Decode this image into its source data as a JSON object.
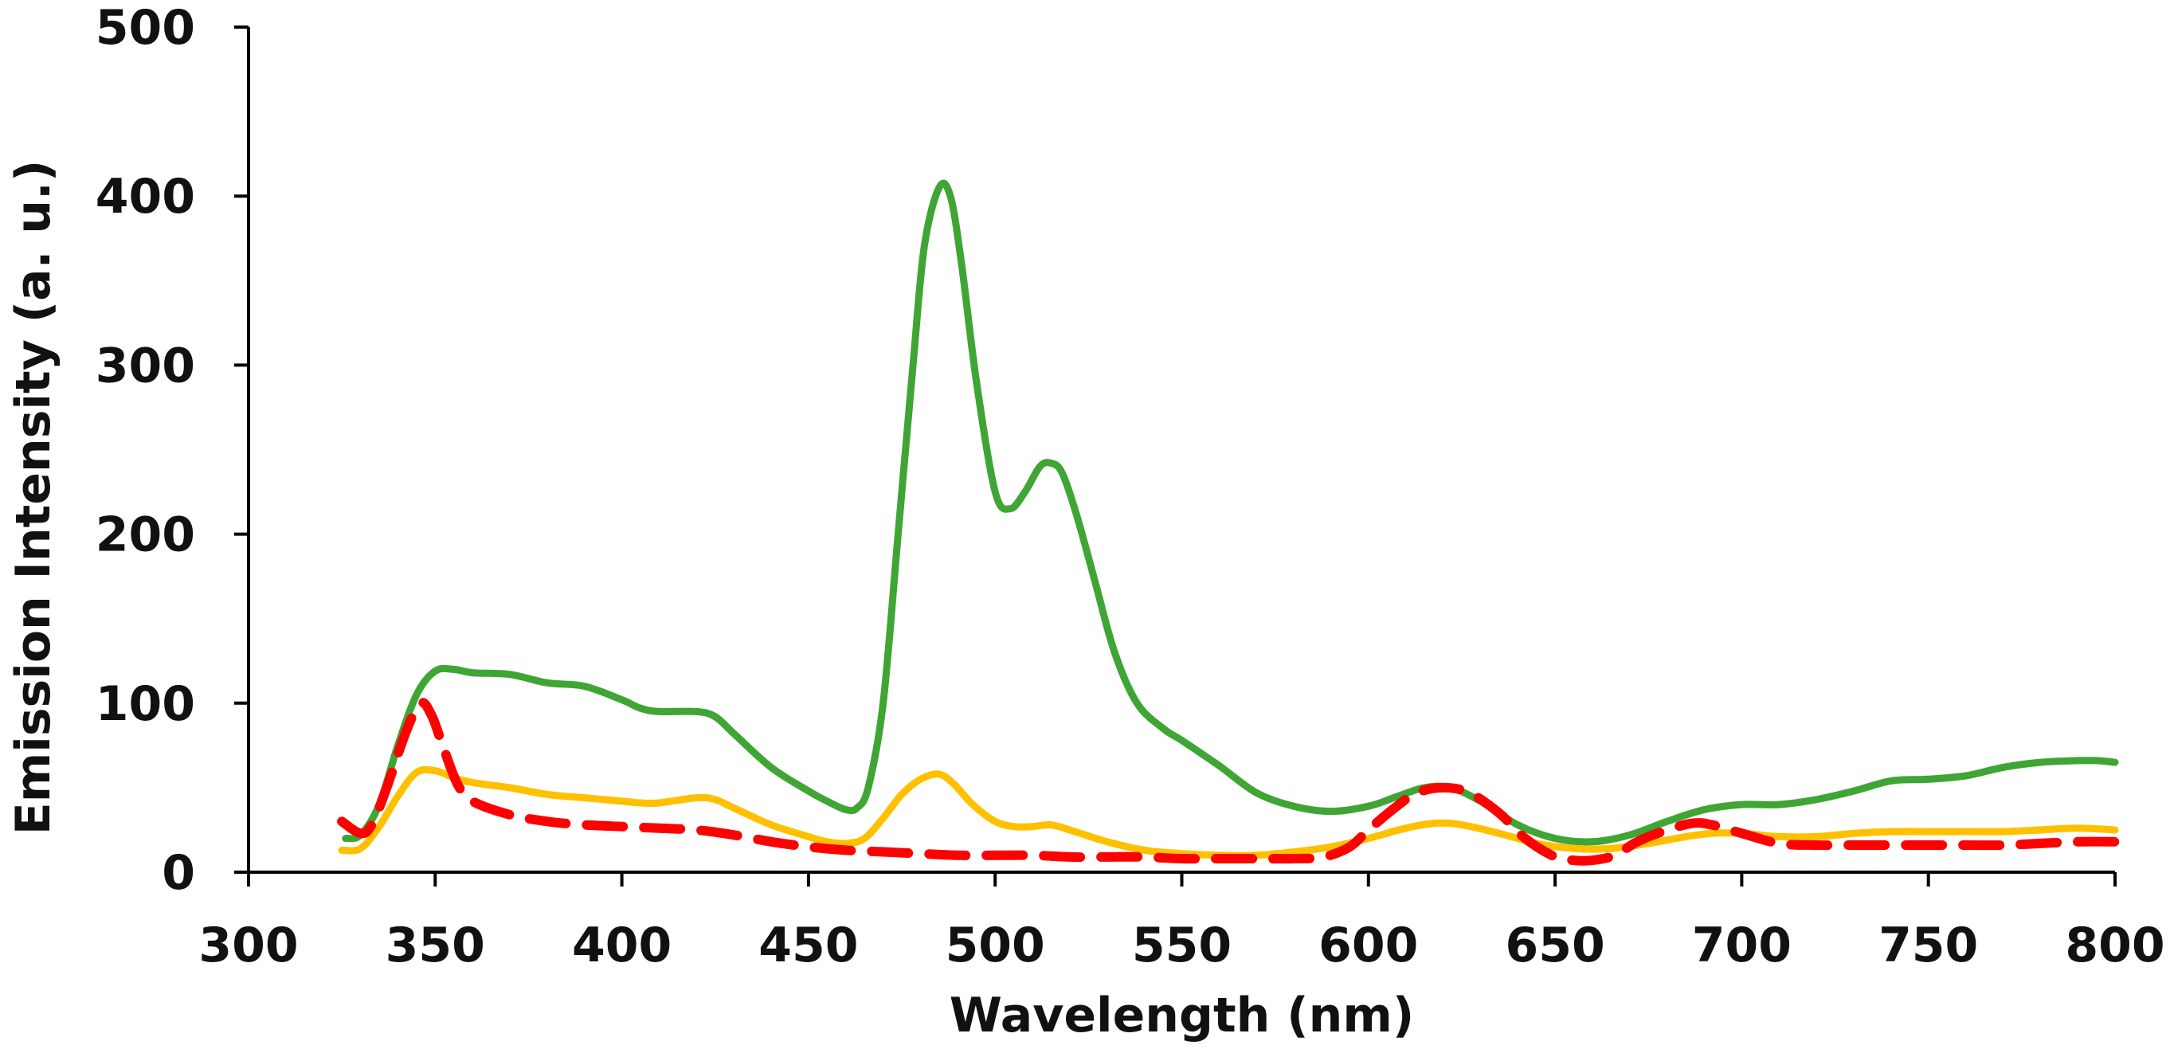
{
  "chart_data": {
    "type": "line",
    "title": "",
    "xlabel": "Wavelength (nm)",
    "ylabel": "Emission Intensity (a. u.)",
    "xlim": [
      300,
      800
    ],
    "ylim": [
      0,
      500
    ],
    "x_ticks": [
      300,
      350,
      400,
      450,
      500,
      550,
      600,
      650,
      700,
      750,
      800
    ],
    "y_ticks": [
      0,
      100,
      200,
      300,
      400,
      500
    ],
    "grid": false,
    "legend": "none",
    "series": [
      {
        "name": "green",
        "color": "#3fa535",
        "dash": "solid",
        "points": [
          [
            326,
            20
          ],
          [
            330,
            22
          ],
          [
            335,
            40
          ],
          [
            340,
            75
          ],
          [
            345,
            105
          ],
          [
            350,
            119
          ],
          [
            355,
            120
          ],
          [
            360,
            118
          ],
          [
            370,
            117
          ],
          [
            380,
            112
          ],
          [
            390,
            110
          ],
          [
            400,
            102
          ],
          [
            405,
            97
          ],
          [
            410,
            95
          ],
          [
            420,
            95
          ],
          [
            425,
            92
          ],
          [
            430,
            82
          ],
          [
            440,
            62
          ],
          [
            450,
            48
          ],
          [
            455,
            42
          ],
          [
            460,
            37
          ],
          [
            463,
            38
          ],
          [
            466,
            50
          ],
          [
            470,
            100
          ],
          [
            474,
            200
          ],
          [
            478,
            300
          ],
          [
            481,
            370
          ],
          [
            485,
            405
          ],
          [
            488,
            400
          ],
          [
            491,
            360
          ],
          [
            495,
            290
          ],
          [
            500,
            225
          ],
          [
            504,
            215
          ],
          [
            508,
            225
          ],
          [
            512,
            240
          ],
          [
            515,
            242
          ],
          [
            518,
            236
          ],
          [
            522,
            210
          ],
          [
            527,
            170
          ],
          [
            532,
            130
          ],
          [
            538,
            100
          ],
          [
            545,
            85
          ],
          [
            550,
            78
          ],
          [
            560,
            63
          ],
          [
            570,
            47
          ],
          [
            580,
            39
          ],
          [
            590,
            36
          ],
          [
            600,
            39
          ],
          [
            608,
            45
          ],
          [
            615,
            50
          ],
          [
            622,
            50
          ],
          [
            630,
            42
          ],
          [
            640,
            28
          ],
          [
            650,
            20
          ],
          [
            660,
            18
          ],
          [
            670,
            22
          ],
          [
            680,
            30
          ],
          [
            690,
            37
          ],
          [
            700,
            40
          ],
          [
            710,
            40
          ],
          [
            720,
            43
          ],
          [
            730,
            48
          ],
          [
            740,
            54
          ],
          [
            750,
            55
          ],
          [
            760,
            57
          ],
          [
            770,
            62
          ],
          [
            780,
            65
          ],
          [
            790,
            66
          ],
          [
            795,
            66
          ],
          [
            800,
            65
          ]
        ]
      },
      {
        "name": "yellow",
        "color": "#ffc000",
        "dash": "solid",
        "points": [
          [
            325,
            13
          ],
          [
            330,
            14
          ],
          [
            335,
            27
          ],
          [
            340,
            45
          ],
          [
            345,
            59
          ],
          [
            350,
            60
          ],
          [
            355,
            56
          ],
          [
            360,
            53
          ],
          [
            370,
            50
          ],
          [
            380,
            46
          ],
          [
            390,
            44
          ],
          [
            400,
            42
          ],
          [
            405,
            41
          ],
          [
            410,
            41
          ],
          [
            420,
            44
          ],
          [
            425,
            43
          ],
          [
            430,
            38
          ],
          [
            440,
            28
          ],
          [
            450,
            21
          ],
          [
            455,
            18
          ],
          [
            460,
            17
          ],
          [
            465,
            20
          ],
          [
            470,
            32
          ],
          [
            475,
            46
          ],
          [
            480,
            55
          ],
          [
            485,
            58
          ],
          [
            489,
            52
          ],
          [
            494,
            40
          ],
          [
            500,
            30
          ],
          [
            505,
            27
          ],
          [
            510,
            27
          ],
          [
            515,
            28
          ],
          [
            520,
            25
          ],
          [
            530,
            18
          ],
          [
            540,
            13
          ],
          [
            550,
            11
          ],
          [
            560,
            10
          ],
          [
            570,
            10
          ],
          [
            580,
            12
          ],
          [
            590,
            15
          ],
          [
            600,
            20
          ],
          [
            610,
            26
          ],
          [
            618,
            29
          ],
          [
            625,
            28
          ],
          [
            635,
            23
          ],
          [
            645,
            17
          ],
          [
            655,
            14
          ],
          [
            665,
            14
          ],
          [
            675,
            17
          ],
          [
            685,
            21
          ],
          [
            692,
            23
          ],
          [
            700,
            23
          ],
          [
            710,
            21
          ],
          [
            720,
            21
          ],
          [
            730,
            23
          ],
          [
            740,
            24
          ],
          [
            750,
            24
          ],
          [
            760,
            24
          ],
          [
            770,
            24
          ],
          [
            780,
            25
          ],
          [
            790,
            26
          ],
          [
            800,
            25
          ]
        ]
      },
      {
        "name": "red-dashed",
        "color": "#ff0000",
        "dash": "dashed",
        "points": [
          [
            325,
            30
          ],
          [
            330,
            23
          ],
          [
            333,
            28
          ],
          [
            337,
            50
          ],
          [
            342,
            82
          ],
          [
            346,
            100
          ],
          [
            349,
            93
          ],
          [
            352,
            75
          ],
          [
            356,
            52
          ],
          [
            360,
            42
          ],
          [
            370,
            34
          ],
          [
            380,
            30
          ],
          [
            390,
            28
          ],
          [
            400,
            27
          ],
          [
            410,
            26
          ],
          [
            420,
            25
          ],
          [
            430,
            22
          ],
          [
            440,
            18
          ],
          [
            450,
            15
          ],
          [
            460,
            13
          ],
          [
            470,
            12
          ],
          [
            480,
            11
          ],
          [
            490,
            10
          ],
          [
            500,
            10
          ],
          [
            510,
            10
          ],
          [
            520,
            9
          ],
          [
            530,
            9
          ],
          [
            540,
            9
          ],
          [
            550,
            8
          ],
          [
            560,
            8
          ],
          [
            570,
            8
          ],
          [
            580,
            8
          ],
          [
            588,
            9
          ],
          [
            595,
            15
          ],
          [
            600,
            25
          ],
          [
            607,
            38
          ],
          [
            613,
            47
          ],
          [
            620,
            50
          ],
          [
            627,
            47
          ],
          [
            635,
            35
          ],
          [
            642,
            20
          ],
          [
            650,
            9
          ],
          [
            655,
            7
          ],
          [
            660,
            7
          ],
          [
            666,
            10
          ],
          [
            672,
            18
          ],
          [
            680,
            25
          ],
          [
            687,
            29
          ],
          [
            692,
            28
          ],
          [
            700,
            23
          ],
          [
            710,
            17
          ],
          [
            720,
            16
          ],
          [
            730,
            16
          ],
          [
            740,
            16
          ],
          [
            750,
            16
          ],
          [
            760,
            16
          ],
          [
            770,
            16
          ],
          [
            780,
            17
          ],
          [
            790,
            18
          ],
          [
            800,
            18
          ]
        ]
      }
    ]
  }
}
